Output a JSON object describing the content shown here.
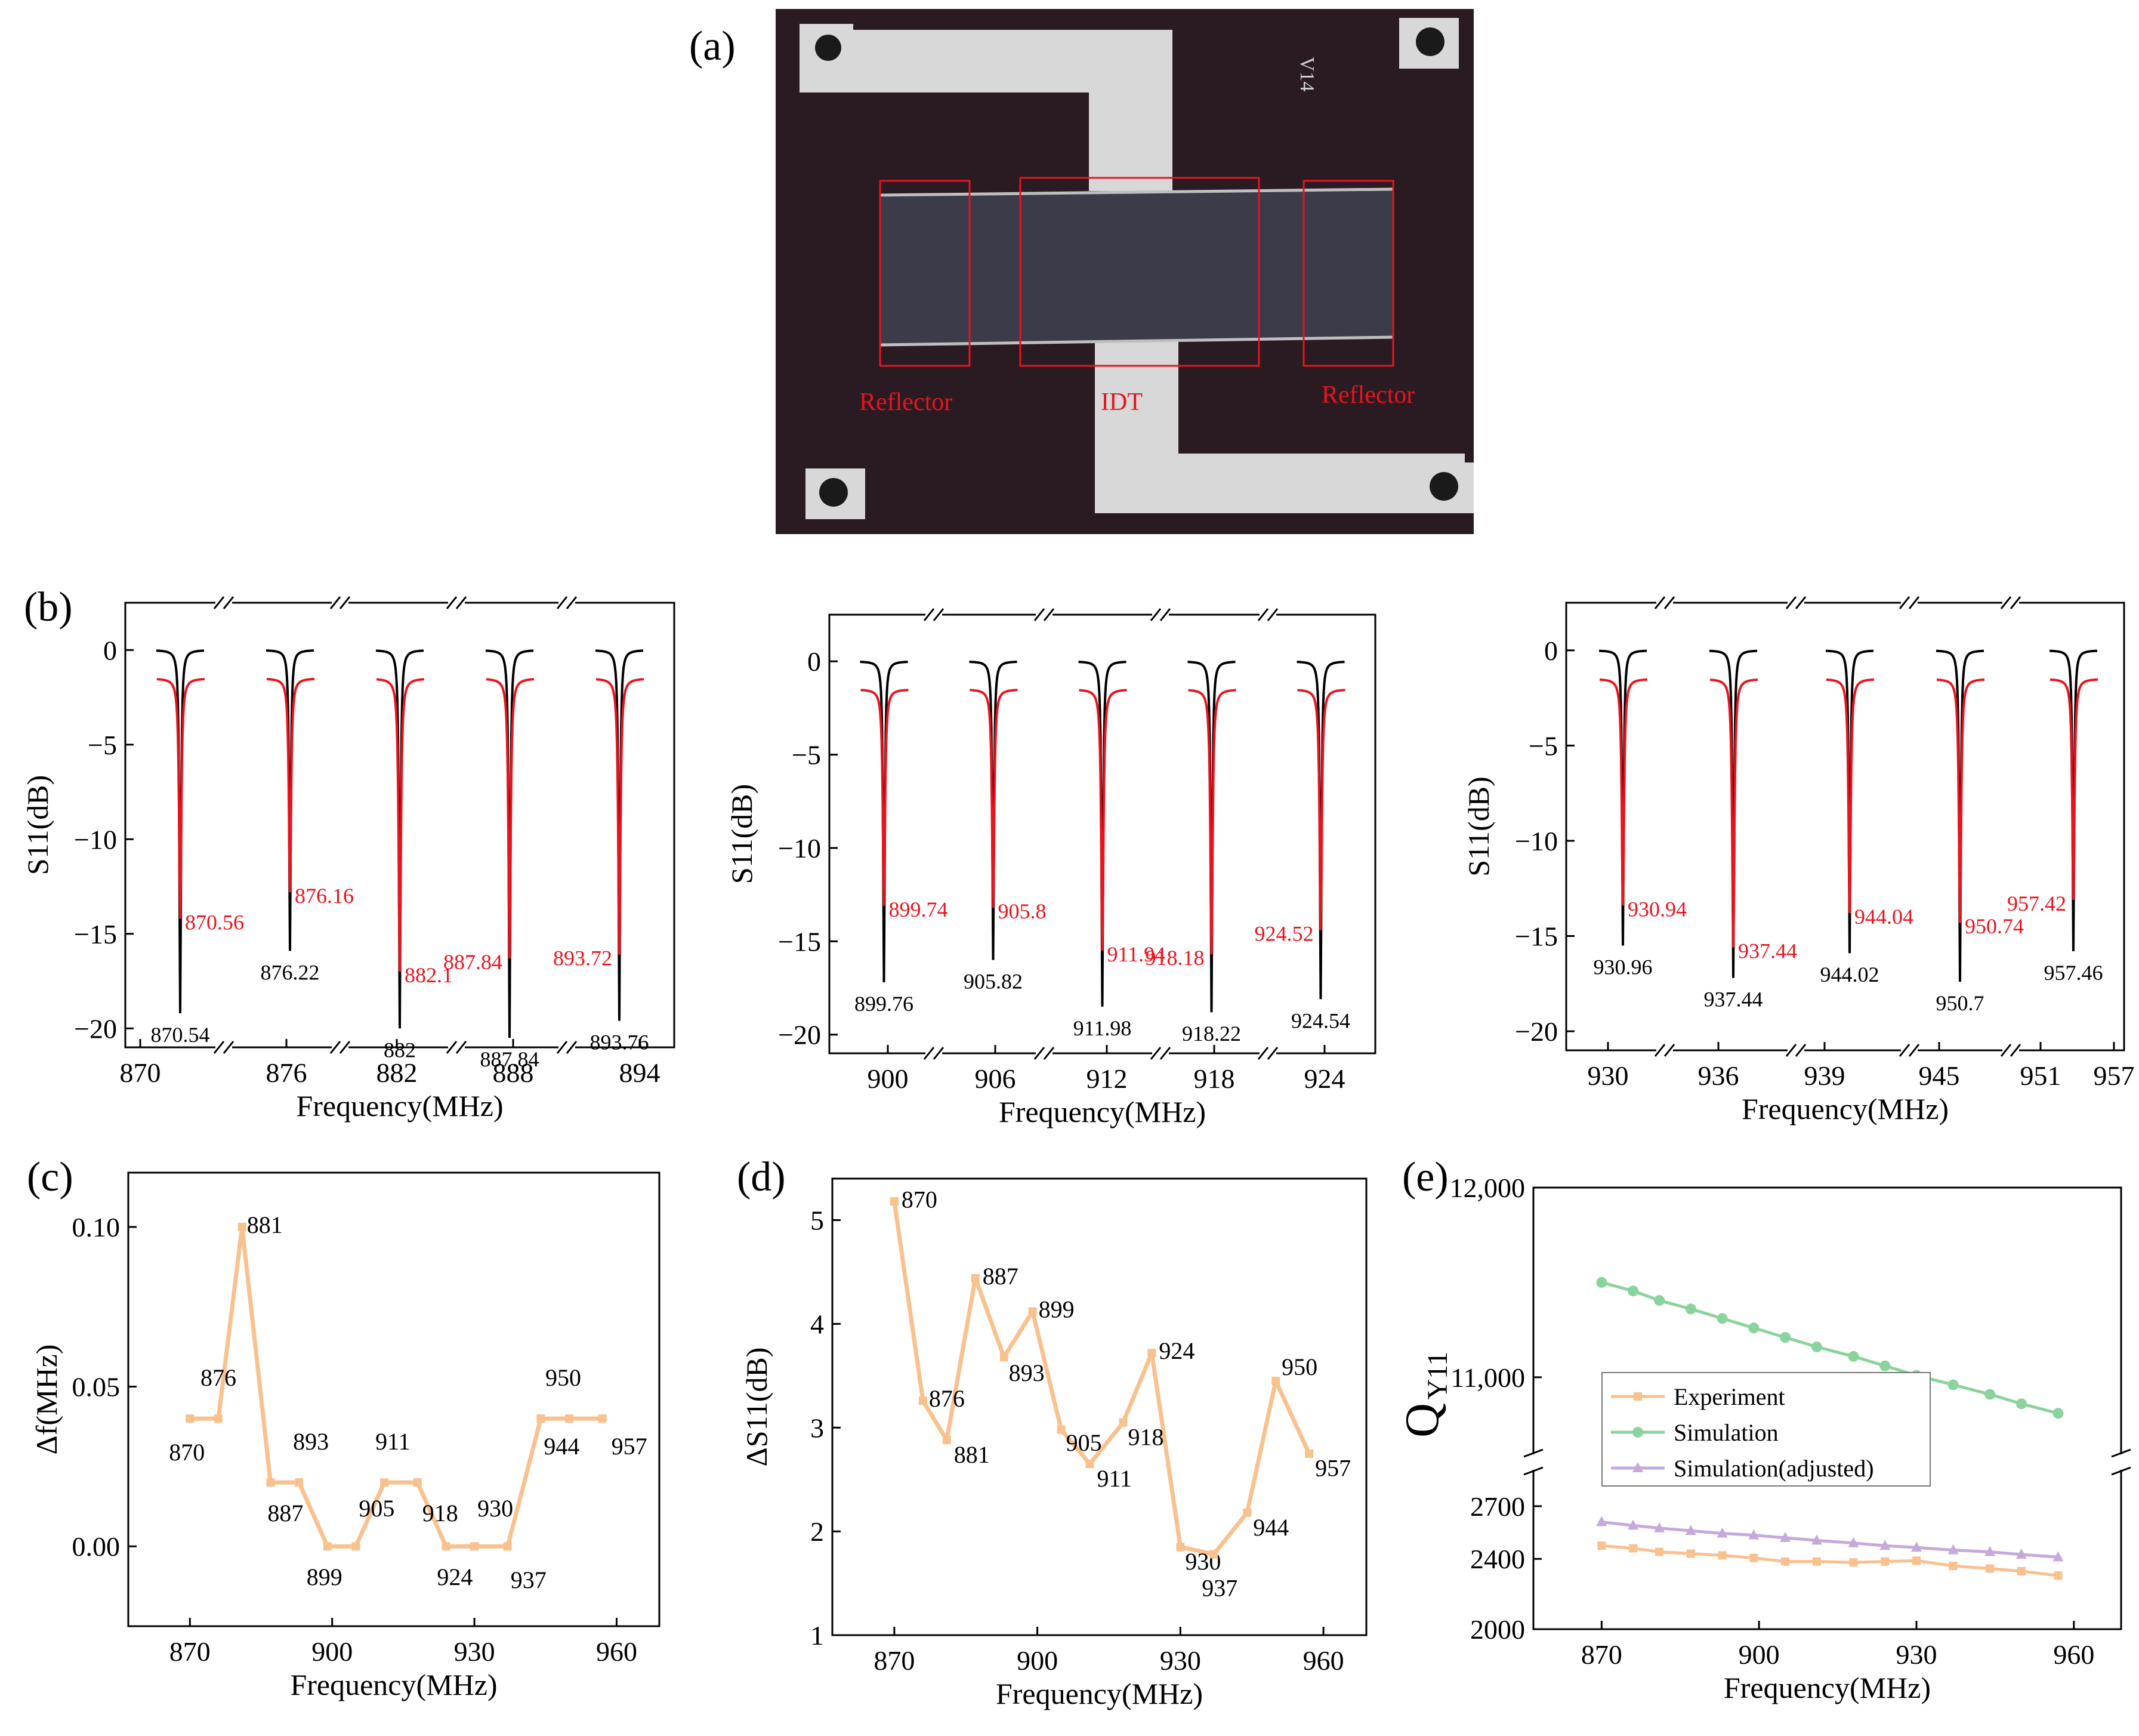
{
  "panel_labels": {
    "a": "(a)",
    "b": "(b)",
    "c": "(c)",
    "d": "(d)",
    "e": "(e)"
  },
  "photo": {
    "chip_label": "V14",
    "regions": [
      "Reflector",
      "IDT",
      "Reflector"
    ],
    "colors": {
      "background": "#2a1b22",
      "metal": "#d8d8d8",
      "grating": "#3b3b4a",
      "box": "#e8141e"
    }
  },
  "colors": {
    "black_curve": "#000000",
    "red_curve": "#e8141e",
    "orange": "#f8c18e",
    "green": "#8ad39c",
    "purple": "#c5a9db"
  },
  "chart_data": [
    {
      "id": "b1",
      "type": "line",
      "xlabel": "Frequency(MHz)",
      "ylabel": "S11(dB)",
      "yticks": [
        "0",
        "−5",
        "−10",
        "−15",
        "−20"
      ],
      "ylim": [
        -21,
        2.5
      ],
      "xticks": [
        "870",
        "876",
        "882",
        "888",
        "894"
      ],
      "dips": [
        {
          "black_freq": "870.54",
          "black_min": -19.2,
          "red_freq": "870.56",
          "red_min": -14.2
        },
        {
          "black_freq": "876.22",
          "black_min": -15.9,
          "red_freq": "876.16",
          "red_min": -12.8
        },
        {
          "black_freq": "882",
          "black_min": -20.0,
          "red_freq": "882.1",
          "red_min": -17.0
        },
        {
          "black_freq": "887.84",
          "black_min": -20.5,
          "red_freq": "887.84",
          "red_min": -16.3
        },
        {
          "black_freq": "893.76",
          "black_min": -19.6,
          "red_freq": "893.72",
          "red_min": -16.1
        }
      ]
    },
    {
      "id": "b2",
      "type": "line",
      "xlabel": "Frequency(MHz)",
      "ylabel": "S11(dB)",
      "yticks": [
        "0",
        "−5",
        "−10",
        "−15",
        "−20"
      ],
      "ylim": [
        -21,
        2.5
      ],
      "xticks": [
        "900",
        "906",
        "912",
        "918",
        "924"
      ],
      "dips": [
        {
          "black_freq": "899.76",
          "black_min": -17.2,
          "red_freq": "899.74",
          "red_min": -13.1
        },
        {
          "black_freq": "905.82",
          "black_min": -16.0,
          "red_freq": "905.8",
          "red_min": -13.2
        },
        {
          "black_freq": "911.98",
          "black_min": -18.5,
          "red_freq": "911.94",
          "red_min": -15.5
        },
        {
          "black_freq": "918.22",
          "black_min": -18.8,
          "red_freq": "918.18",
          "red_min": -15.7
        },
        {
          "black_freq": "924.54",
          "black_min": -18.1,
          "red_freq": "924.52",
          "red_min": -14.4
        }
      ]
    },
    {
      "id": "b3",
      "type": "line",
      "xlabel": "Frequency(MHz)",
      "ylabel": "S11(dB)",
      "yticks": [
        "0",
        "−5",
        "−10",
        "−15",
        "−20"
      ],
      "ylim": [
        -21,
        2.5
      ],
      "xticks": [
        "930",
        "936",
        "939",
        "945",
        "951",
        "957"
      ],
      "dips": [
        {
          "black_freq": "930.96",
          "black_min": -15.5,
          "red_freq": "930.94",
          "red_min": -13.4
        },
        {
          "black_freq": "937.44",
          "black_min": -17.2,
          "red_freq": "937.44",
          "red_min": -15.6
        },
        {
          "black_freq": "944.02",
          "black_min": -15.9,
          "red_freq": "944.04",
          "red_min": -13.8
        },
        {
          "black_freq": "950.7",
          "black_min": -17.4,
          "red_freq": "950.74",
          "red_min": -14.3
        },
        {
          "black_freq": "957.46",
          "black_min": -15.8,
          "red_freq": "957.42",
          "red_min": -13.1
        }
      ]
    },
    {
      "id": "c",
      "type": "line",
      "xlabel": "Frequency(MHz)",
      "ylabel": "Δf(MHz)",
      "xlim": [
        857,
        969
      ],
      "ylim": [
        -0.025,
        0.117
      ],
      "xticks": [
        870,
        900,
        930,
        960
      ],
      "yticks": [
        {
          "v": 0,
          "label": "0.00"
        },
        {
          "v": 0.05,
          "label": "0.05"
        },
        {
          "v": 0.1,
          "label": "0.10"
        }
      ],
      "points": [
        {
          "x": 870,
          "y": 0.04,
          "label": "870"
        },
        {
          "x": 876,
          "y": 0.04,
          "label": "876"
        },
        {
          "x": 881,
          "y": 0.1,
          "label": "881"
        },
        {
          "x": 887,
          "y": 0.02,
          "label": "887"
        },
        {
          "x": 893,
          "y": 0.02,
          "label": "893"
        },
        {
          "x": 899,
          "y": 0.0,
          "label": "899"
        },
        {
          "x": 905,
          "y": 0.0,
          "label": "905"
        },
        {
          "x": 911,
          "y": 0.02,
          "label": "911"
        },
        {
          "x": 918,
          "y": 0.02,
          "label": "918"
        },
        {
          "x": 924,
          "y": 0.0,
          "label": "924"
        },
        {
          "x": 930,
          "y": 0.0,
          "label": "930"
        },
        {
          "x": 937,
          "y": 0.0,
          "label": "937"
        },
        {
          "x": 944,
          "y": 0.04,
          "label": "944"
        },
        {
          "x": 950,
          "y": 0.04,
          "label": "950"
        },
        {
          "x": 957,
          "y": 0.04,
          "label": "957"
        }
      ]
    },
    {
      "id": "d",
      "type": "line",
      "xlabel": "Frequency(MHz)",
      "ylabel": "ΔS11(dB)",
      "xlim": [
        857,
        969
      ],
      "ylim": [
        1,
        5.4
      ],
      "xticks": [
        870,
        900,
        930,
        960
      ],
      "yticks": [
        {
          "v": 1,
          "label": "1"
        },
        {
          "v": 2,
          "label": "2"
        },
        {
          "v": 3,
          "label": "3"
        },
        {
          "v": 4,
          "label": "4"
        },
        {
          "v": 5,
          "label": "5"
        }
      ],
      "points": [
        {
          "x": 870,
          "y": 5.18,
          "label": "870"
        },
        {
          "x": 876,
          "y": 3.26,
          "label": "876"
        },
        {
          "x": 881,
          "y": 2.88,
          "label": "881"
        },
        {
          "x": 887,
          "y": 4.44,
          "label": "887"
        },
        {
          "x": 893,
          "y": 3.68,
          "label": "893"
        },
        {
          "x": 899,
          "y": 4.12,
          "label": "899"
        },
        {
          "x": 905,
          "y": 2.98,
          "label": "905"
        },
        {
          "x": 911,
          "y": 2.65,
          "label": "911"
        },
        {
          "x": 918,
          "y": 3.05,
          "label": "918"
        },
        {
          "x": 924,
          "y": 3.72,
          "label": "924"
        },
        {
          "x": 930,
          "y": 1.85,
          "label": "930"
        },
        {
          "x": 937,
          "y": 1.78,
          "label": "937"
        },
        {
          "x": 944,
          "y": 2.18,
          "label": "944"
        },
        {
          "x": 950,
          "y": 3.45,
          "label": "950"
        },
        {
          "x": 957,
          "y": 2.75,
          "label": "957"
        }
      ]
    },
    {
      "id": "e",
      "type": "line",
      "xlabel": "Frequency(MHz)",
      "ylabel": "Q",
      "ylabel_sub": "Y11",
      "xlim": [
        857,
        969
      ],
      "upper_ylim": [
        10600,
        12000
      ],
      "lower_ylim": [
        2000,
        2900
      ],
      "upper_yticks": [
        {
          "v": 11000,
          "label": "11,000"
        },
        {
          "v": 12000,
          "label": "12,000"
        }
      ],
      "lower_yticks": [
        {
          "v": 2000,
          "label": "2000"
        },
        {
          "v": 2400,
          "label": "2400"
        },
        {
          "v": 2700,
          "label": "2700"
        }
      ],
      "xticks": [
        870,
        900,
        930,
        960
      ],
      "legend": "middle-left",
      "x": [
        870,
        876,
        881,
        887,
        893,
        899,
        905,
        911,
        918,
        924,
        930,
        937,
        944,
        950,
        957
      ],
      "series": [
        {
          "name": "Experiment",
          "color": "#f8c18e",
          "marker": "square",
          "values": [
            2475,
            2460,
            2440,
            2430,
            2420,
            2405,
            2385,
            2385,
            2380,
            2385,
            2390,
            2360,
            2345,
            2330,
            2305
          ]
        },
        {
          "name": "Simulation",
          "color": "#8ad39c",
          "marker": "circle",
          "values": [
            11500,
            11455,
            11405,
            11360,
            11310,
            11260,
            11210,
            11160,
            11110,
            11060,
            11010,
            10960,
            10910,
            10860,
            10810
          ]
        },
        {
          "name": "Simulation(adjusted)",
          "color": "#c5a9db",
          "marker": "triangle",
          "values": [
            2610,
            2590,
            2575,
            2560,
            2545,
            2535,
            2520,
            2505,
            2490,
            2475,
            2465,
            2450,
            2440,
            2425,
            2410
          ]
        }
      ]
    }
  ]
}
